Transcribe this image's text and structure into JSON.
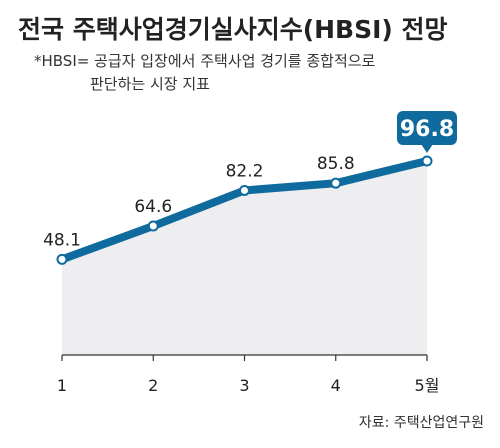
{
  "chart_data": {
    "type": "line",
    "title": "전국 주택사업경기실사지수(HBSI) 전망",
    "note_line1": "*HBSI= 공급자 입장에서 주택사업 경기를 종합적으로",
    "note_line2": "판단하는 시장 지표",
    "categories": [
      "1",
      "2",
      "3",
      "4",
      "5월"
    ],
    "series": [
      {
        "values": [
          48.1,
          64.6,
          82.2,
          85.8,
          96.8
        ]
      }
    ],
    "value_labels": [
      "48.1",
      "64.6",
      "82.2",
      "85.8",
      "96.8"
    ],
    "highlight_index": 4,
    "source": "자료: 주택산업연구원",
    "colors": {
      "line": "#0f6a9e",
      "area": "#eeeef0",
      "highlight_box": "#0f6a9e",
      "axis": "#333333"
    }
  }
}
